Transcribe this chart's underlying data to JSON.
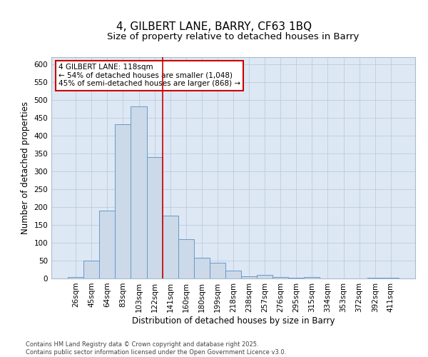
{
  "title1": "4, GILBERT LANE, BARRY, CF63 1BQ",
  "title2": "Size of property relative to detached houses in Barry",
  "xlabel": "Distribution of detached houses by size in Barry",
  "ylabel": "Number of detached properties",
  "categories": [
    "26sqm",
    "45sqm",
    "64sqm",
    "83sqm",
    "103sqm",
    "122sqm",
    "141sqm",
    "160sqm",
    "180sqm",
    "199sqm",
    "218sqm",
    "238sqm",
    "257sqm",
    "276sqm",
    "295sqm",
    "315sqm",
    "334sqm",
    "353sqm",
    "372sqm",
    "392sqm",
    "411sqm"
  ],
  "values": [
    4,
    51,
    190,
    433,
    482,
    340,
    176,
    110,
    59,
    45,
    22,
    7,
    11,
    5,
    2,
    5,
    1,
    1,
    0,
    3,
    2
  ],
  "bar_color": "#ccd9e8",
  "bar_edge_color": "#6699cc",
  "grid_color": "#bbcce0",
  "background_color": "#dde8f4",
  "vline_x": 5.5,
  "vline_color": "#cc0000",
  "annotation_text": "4 GILBERT LANE: 118sqm\n← 54% of detached houses are smaller (1,048)\n45% of semi-detached houses are larger (868) →",
  "annotation_box_color": "#cc0000",
  "ylim": [
    0,
    620
  ],
  "yticks": [
    0,
    50,
    100,
    150,
    200,
    250,
    300,
    350,
    400,
    450,
    500,
    550,
    600
  ],
  "footer": "Contains HM Land Registry data © Crown copyright and database right 2025.\nContains public sector information licensed under the Open Government Licence v3.0.",
  "title_fontsize": 11,
  "subtitle_fontsize": 9.5,
  "tick_fontsize": 7.5,
  "ylabel_fontsize": 8.5,
  "xlabel_fontsize": 8.5,
  "footer_fontsize": 6,
  "annot_fontsize": 7.5
}
